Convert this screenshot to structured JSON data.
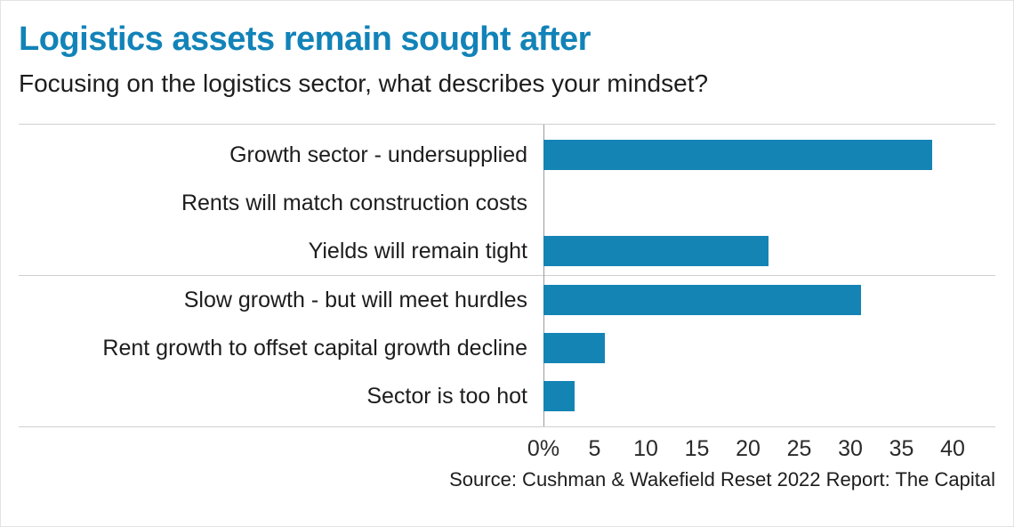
{
  "header": {
    "title": "Logistics assets remain sought after",
    "subtitle": "Focusing on the logistics sector, what describes your mindset?"
  },
  "chart_data": {
    "type": "bar",
    "orientation": "horizontal",
    "title": "Logistics assets remain sought after",
    "subtitle": "Focusing on the logistics sector, what describes your mindset?",
    "categories": [
      "Growth sector - undersupplied",
      "Rents will match construction costs",
      "Yields will remain tight",
      "Slow growth - but will meet hurdles",
      "Rent growth to offset capital growth decline",
      "Sector is too hot"
    ],
    "values": [
      38,
      0,
      22,
      31,
      6,
      3
    ],
    "group_break_after_index": 2,
    "x_ticks": [
      "0%",
      "5",
      "10",
      "15",
      "20",
      "25",
      "30",
      "35",
      "40"
    ],
    "xlim": [
      0,
      40
    ],
    "xlabel": "",
    "ylabel": "",
    "grid": false,
    "legend": "none",
    "bar_color": "#1484b5"
  },
  "footer": {
    "source": "Source: Cushman & Wakefield Reset 2022 Report: The Capital"
  },
  "colors": {
    "accent": "#1484b5",
    "title_text": "#1283b8",
    "divider": "#cfcfcf",
    "axis_line": "#9b9b9b",
    "text": "#1d1d1d"
  }
}
